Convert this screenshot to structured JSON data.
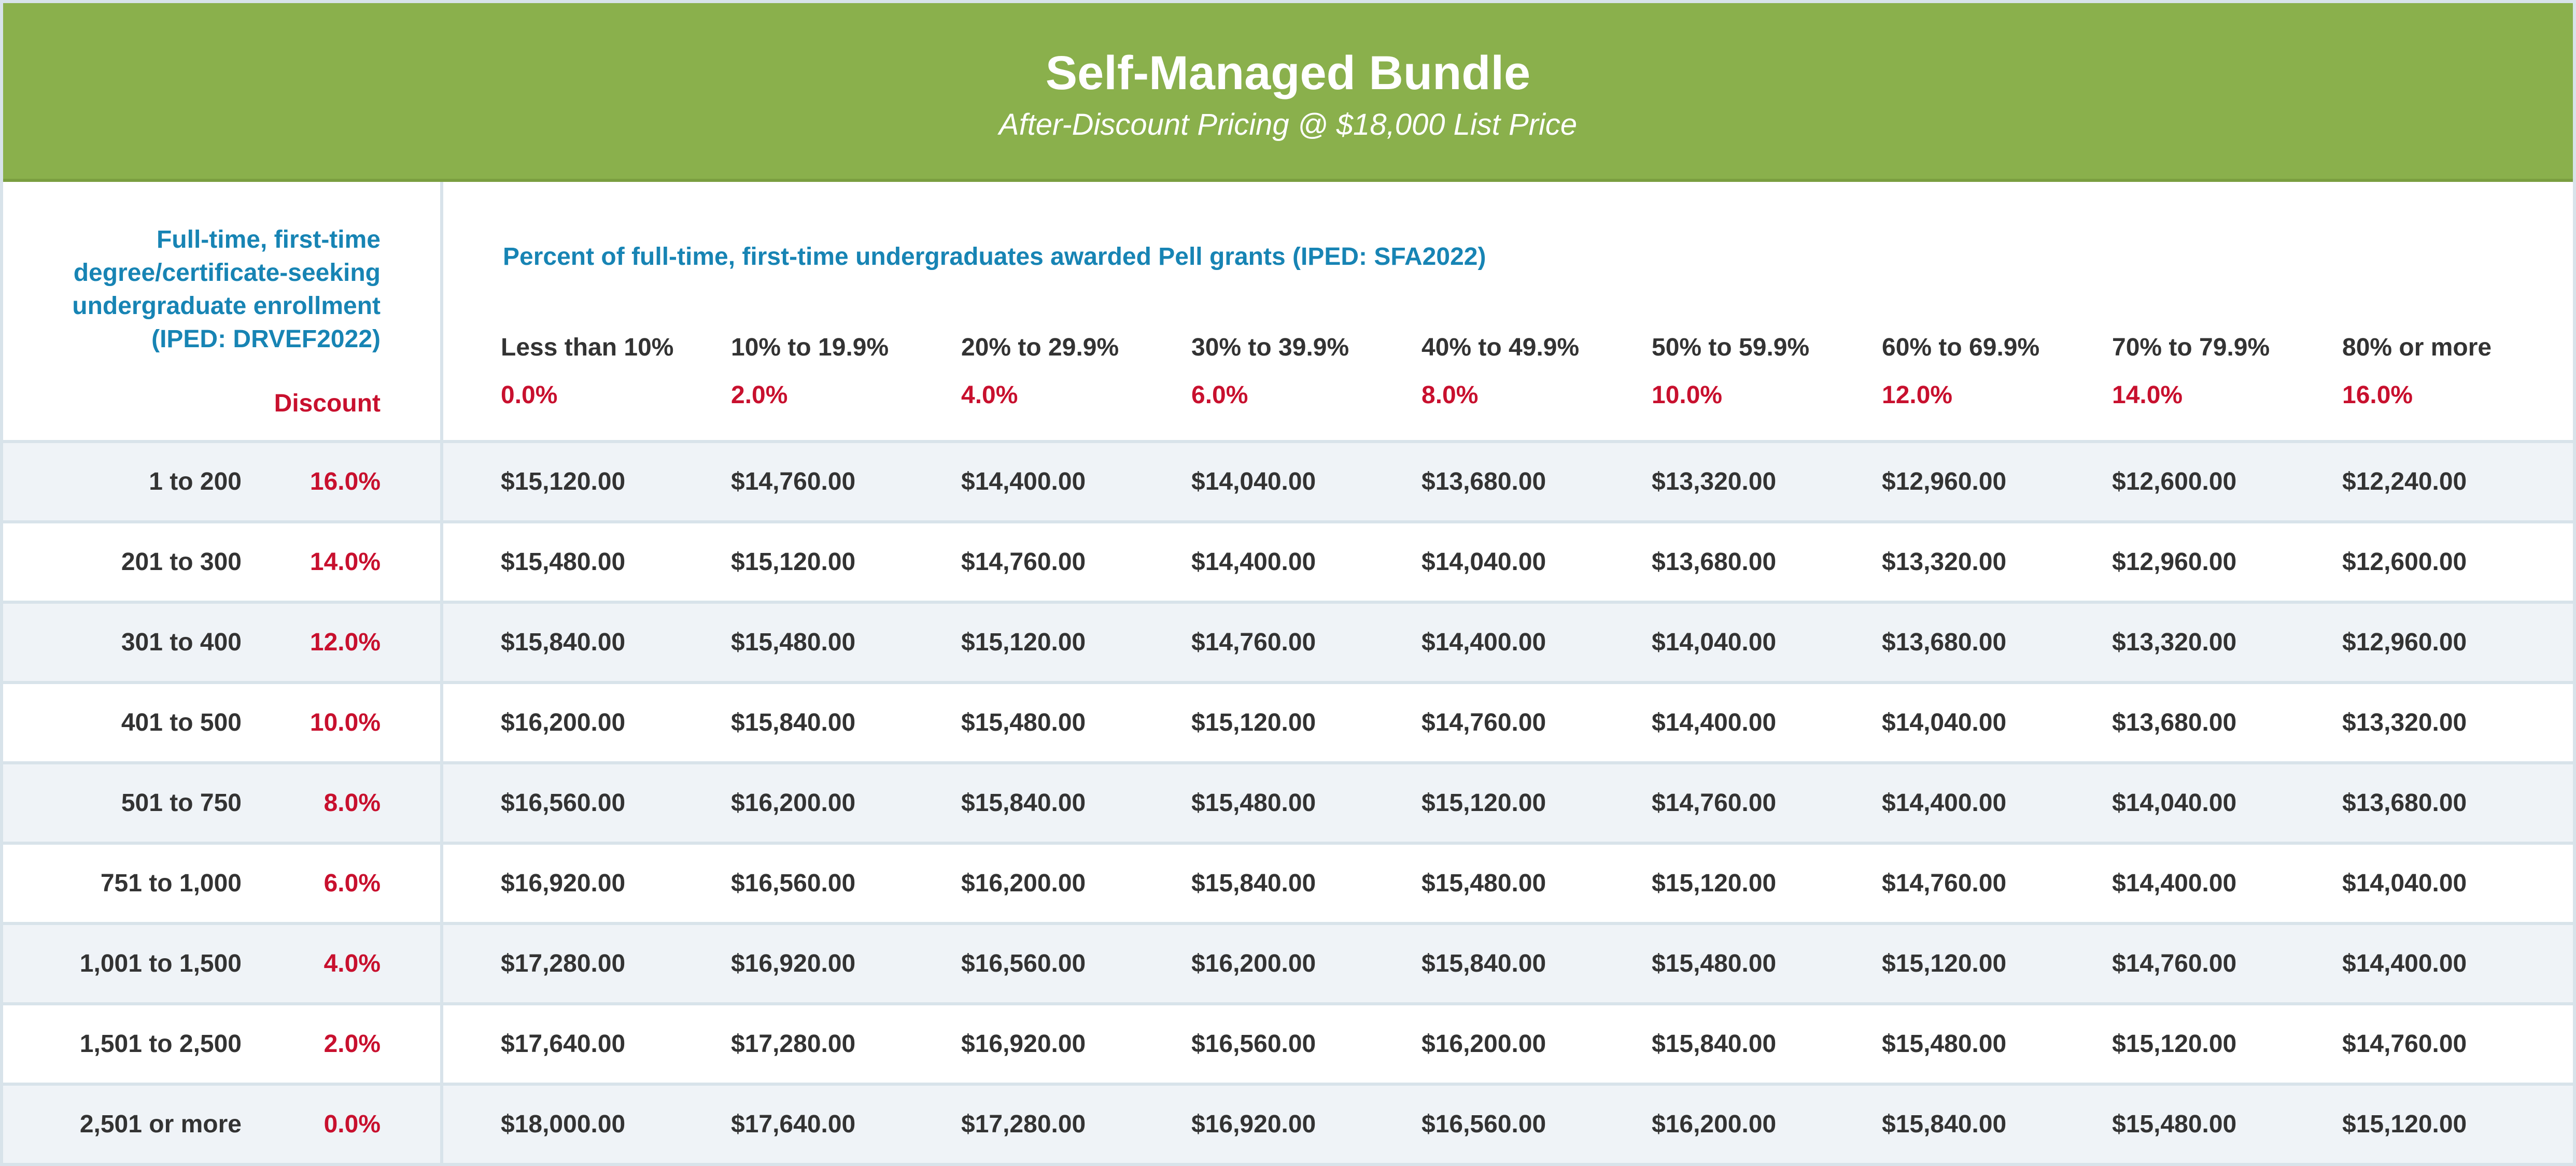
{
  "header": {
    "title": "Self-Managed Bundle",
    "subtitle": "After-Discount Pricing @ $18,000 List Price"
  },
  "table": {
    "enrollment_label": "Full-time, first-time degree/certificate-seeking undergraduate enrollment (IPED: DRVEF2022)",
    "discount_label": "Discount",
    "pell_label": "Percent of full-time, first-time undergraduates awarded Pell grants (IPED: SFA2022)",
    "columns": [
      {
        "label": "Less than 10%",
        "discount": "0.0%"
      },
      {
        "label": "10% to 19.9%",
        "discount": "2.0%"
      },
      {
        "label": "20% to 29.9%",
        "discount": "4.0%"
      },
      {
        "label": "30% to 39.9%",
        "discount": "6.0%"
      },
      {
        "label": "40% to 49.9%",
        "discount": "8.0%"
      },
      {
        "label": "50% to 59.9%",
        "discount": "10.0%"
      },
      {
        "label": "60% to 69.9%",
        "discount": "12.0%"
      },
      {
        "label": "70% to 79.9%",
        "discount": "14.0%"
      },
      {
        "label": "80% or more",
        "discount": "16.0%"
      }
    ],
    "rows": [
      {
        "range": "1 to 200",
        "discount": "16.0%",
        "prices": [
          "$15,120.00",
          "$14,760.00",
          "$14,400.00",
          "$14,040.00",
          "$13,680.00",
          "$13,320.00",
          "$12,960.00",
          "$12,600.00",
          "$12,240.00"
        ]
      },
      {
        "range": "201 to 300",
        "discount": "14.0%",
        "prices": [
          "$15,480.00",
          "$15,120.00",
          "$14,760.00",
          "$14,400.00",
          "$14,040.00",
          "$13,680.00",
          "$13,320.00",
          "$12,960.00",
          "$12,600.00"
        ]
      },
      {
        "range": "301 to 400",
        "discount": "12.0%",
        "prices": [
          "$15,840.00",
          "$15,480.00",
          "$15,120.00",
          "$14,760.00",
          "$14,400.00",
          "$14,040.00",
          "$13,680.00",
          "$13,320.00",
          "$12,960.00"
        ]
      },
      {
        "range": "401 to 500",
        "discount": "10.0%",
        "prices": [
          "$16,200.00",
          "$15,840.00",
          "$15,480.00",
          "$15,120.00",
          "$14,760.00",
          "$14,400.00",
          "$14,040.00",
          "$13,680.00",
          "$13,320.00"
        ]
      },
      {
        "range": "501 to 750",
        "discount": "8.0%",
        "prices": [
          "$16,560.00",
          "$16,200.00",
          "$15,840.00",
          "$15,480.00",
          "$15,120.00",
          "$14,760.00",
          "$14,400.00",
          "$14,040.00",
          "$13,680.00"
        ]
      },
      {
        "range": "751 to 1,000",
        "discount": "6.0%",
        "prices": [
          "$16,920.00",
          "$16,560.00",
          "$16,200.00",
          "$15,840.00",
          "$15,480.00",
          "$15,120.00",
          "$14,760.00",
          "$14,400.00",
          "$14,040.00"
        ]
      },
      {
        "range": "1,001 to 1,500",
        "discount": "4.0%",
        "prices": [
          "$17,280.00",
          "$16,920.00",
          "$16,560.00",
          "$16,200.00",
          "$15,840.00",
          "$15,480.00",
          "$15,120.00",
          "$14,760.00",
          "$14,400.00"
        ]
      },
      {
        "range": "1,501 to 2,500",
        "discount": "2.0%",
        "prices": [
          "$17,640.00",
          "$17,280.00",
          "$16,920.00",
          "$16,560.00",
          "$16,200.00",
          "$15,840.00",
          "$15,480.00",
          "$15,120.00",
          "$14,760.00"
        ]
      },
      {
        "range": "2,501 or more",
        "discount": "0.0%",
        "prices": [
          "$18,000.00",
          "$17,640.00",
          "$17,280.00",
          "$16,920.00",
          "$16,560.00",
          "$16,200.00",
          "$15,840.00",
          "$15,480.00",
          "$15,120.00"
        ]
      }
    ]
  },
  "colors": {
    "header_green": "#8ab04c",
    "label_blue": "#1784b4",
    "discount_red": "#c8102e",
    "row_shade": "#eff3f7",
    "grid_line": "#d8e3ea"
  }
}
